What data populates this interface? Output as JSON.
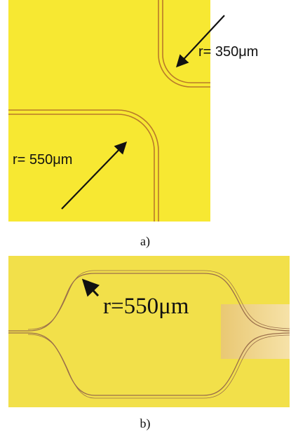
{
  "panel_a": {
    "annotations": [
      "r= 350μm",
      "r= 550μm"
    ],
    "label": "a)"
  },
  "panel_b": {
    "annotation": "r=550μm",
    "label": "b)"
  }
}
